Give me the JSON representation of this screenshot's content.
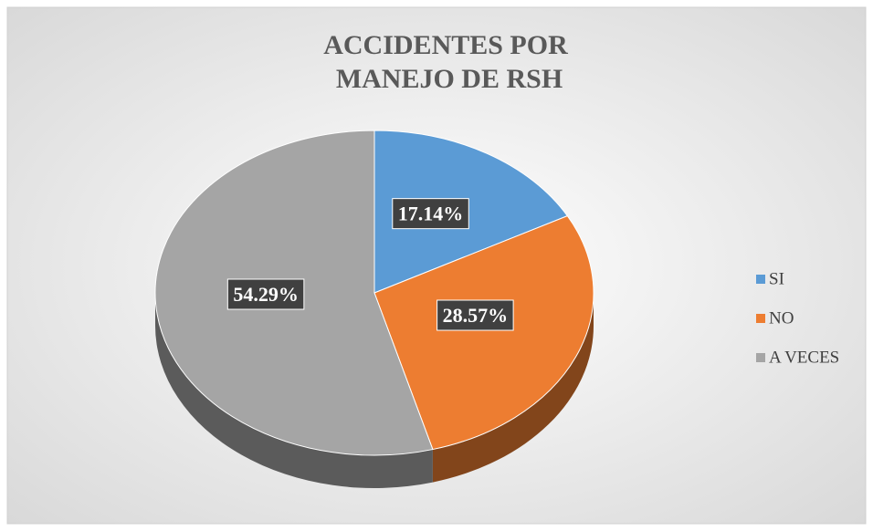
{
  "chart_data": {
    "type": "pie",
    "title": [
      "ACCIDENTES POR",
      "MANEJO DE RSH"
    ],
    "categories": [
      "SI",
      "NO",
      "A VECES"
    ],
    "values": [
      17.14,
      28.57,
      54.29
    ],
    "value_labels": [
      "17.14%",
      "28.57%",
      "54.29%"
    ],
    "colors": [
      "#5b9bd5",
      "#ed7d31",
      "#a5a5a5"
    ],
    "legend": "right"
  }
}
